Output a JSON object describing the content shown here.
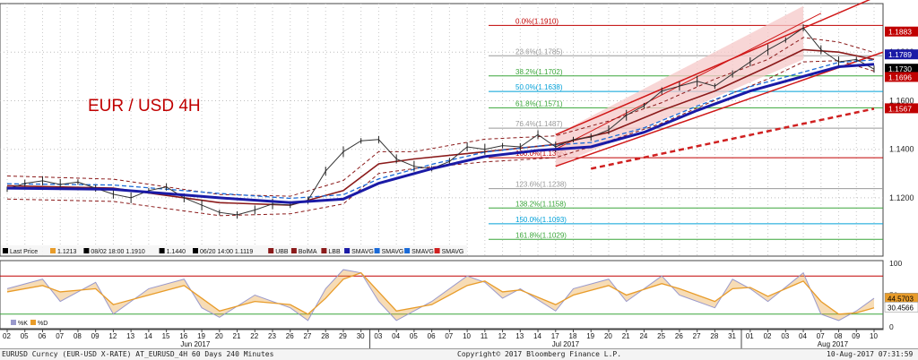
{
  "chart_data": {
    "type": "line",
    "title": "EUR / USD 4H",
    "instrument": "EURUSD Curncy",
    "price_axis": {
      "ticks": [
        "1.1200",
        "1.1400",
        "1.1600",
        "1.1800"
      ],
      "ylim": [
        1.096,
        1.2
      ],
      "tick_values": [
        1.12,
        1.14,
        1.16,
        1.18
      ]
    },
    "price_tags": [
      {
        "label": "1.1883",
        "value": 1.1883,
        "bg": "#c00000",
        "fg": "#ffffff"
      },
      {
        "label": "1.1789",
        "value": 1.1789,
        "bg": "#1a1aa6",
        "fg": "#ffffff"
      },
      {
        "label": "1.1730",
        "value": 1.173,
        "bg": "#000000",
        "fg": "#ffffff"
      },
      {
        "label": "1.1696",
        "value": 1.1696,
        "bg": "#c00000",
        "fg": "#ffffff"
      },
      {
        "label": "1.1567",
        "value": 1.1567,
        "bg": "#c00000",
        "fg": "#ffffff"
      }
    ],
    "fibonacci": [
      {
        "label": "0.0%(1.1910)",
        "value": 1.191,
        "color": "#c00000"
      },
      {
        "label": "23.6%(1.1785)",
        "value": 1.1785,
        "color": "#999999"
      },
      {
        "label": "38.2%(1.1702)",
        "value": 1.1702,
        "color": "#3aa63a"
      },
      {
        "label": "50.0%(1.1638)",
        "value": 1.1638,
        "color": "#00a0d8"
      },
      {
        "label": "61.8%(1.1571)",
        "value": 1.1571,
        "color": "#3aa63a"
      },
      {
        "label": "76.4%(1.1487)",
        "value": 1.1487,
        "color": "#999999"
      },
      {
        "label": "100.0%(1.1365)",
        "value": 1.1365,
        "color": "#c00000"
      },
      {
        "label": "123.6%(1.1238)",
        "value": 1.1238,
        "color": "#999999"
      },
      {
        "label": "138.2%(1.1158)",
        "value": 1.1158,
        "color": "#3aa63a"
      },
      {
        "label": "150.0%(1.1093)",
        "value": 1.1093,
        "color": "#00a0d8"
      },
      {
        "label": "161.8%(1.1029)",
        "value": 1.1029,
        "color": "#3aa63a"
      }
    ],
    "legend": [
      {
        "label": "Last Price",
        "color": "#000000"
      },
      {
        "label": "1.1213",
        "color": "#e89c2a"
      },
      {
        "label": "08/02 18:00 1.1910",
        "color": "#000000"
      },
      {
        "label": "1.1440",
        "color": "#000000"
      },
      {
        "label": "06/20 14:00 1.1119",
        "color": "#000000"
      },
      {
        "label": "UBB",
        "color": "#8b1a1a"
      },
      {
        "label": "BolMA",
        "color": "#8b1a1a"
      },
      {
        "label": "LBB",
        "color": "#8b1a1a"
      },
      {
        "label": "SMAVG",
        "color": "#1a1aa6"
      },
      {
        "label": "SMAVG",
        "color": "#1a6ad8"
      },
      {
        "label": "SMAVG",
        "color": "#1a6ad8"
      },
      {
        "label": "SMAVG",
        "color": "#d02020"
      }
    ],
    "stoch_axis": {
      "ticks": [
        "100",
        "50",
        "0"
      ],
      "tick_values": [
        100,
        50,
        0
      ],
      "ylim": [
        0,
        100
      ]
    },
    "stoch_tags": [
      {
        "label": "44.5703",
        "value": 44.57,
        "bg": "#e89c2a",
        "fg": "#000000"
      },
      {
        "label": "30.4566",
        "value": 30.46,
        "bg": "#ffffff",
        "fg": "#000000"
      }
    ],
    "stoch_legend": [
      {
        "label": "%K",
        "color": "#9999cc"
      },
      {
        "label": "%D",
        "color": "#e89c2a"
      }
    ],
    "x_days": [
      "02",
      "05",
      "06",
      "07",
      "08",
      "09",
      "12",
      "13",
      "14",
      "15",
      "16",
      "19",
      "20",
      "21",
      "22",
      "23",
      "26",
      "27",
      "28",
      "29",
      "30",
      "03",
      "04",
      "05",
      "06",
      "07",
      "10",
      "11",
      "12",
      "13",
      "14",
      "17",
      "18",
      "19",
      "20",
      "21",
      "24",
      "25",
      "26",
      "27",
      "28",
      "31",
      "01",
      "02",
      "03",
      "04",
      "07",
      "08",
      "09",
      "10"
    ],
    "x_months": [
      {
        "label": "Jun 2017",
        "day_index": 10
      },
      {
        "label": "Jul 2017",
        "day_index": 31
      },
      {
        "label": "Aug 2017",
        "day_index": 46
      }
    ],
    "price_path": [
      [
        0,
        1.1235
      ],
      [
        1,
        1.126
      ],
      [
        2,
        1.127
      ],
      [
        3,
        1.1255
      ],
      [
        4,
        1.1265
      ],
      [
        5,
        1.124
      ],
      [
        6,
        1.1215
      ],
      [
        7,
        1.12
      ],
      [
        8,
        1.123
      ],
      [
        9,
        1.1245
      ],
      [
        10,
        1.12
      ],
      [
        11,
        1.117
      ],
      [
        12,
        1.114
      ],
      [
        13,
        1.113
      ],
      [
        14,
        1.115
      ],
      [
        15,
        1.1175
      ],
      [
        16,
        1.117
      ],
      [
        17,
        1.119
      ],
      [
        18,
        1.131
      ],
      [
        19,
        1.139
      ],
      [
        20,
        1.1435
      ],
      [
        21,
        1.144
      ],
      [
        22,
        1.136
      ],
      [
        23,
        1.133
      ],
      [
        24,
        1.132
      ],
      [
        25,
        1.135
      ],
      [
        26,
        1.141
      ],
      [
        27,
        1.14
      ],
      [
        28,
        1.1415
      ],
      [
        29,
        1.141
      ],
      [
        30,
        1.146
      ],
      [
        31,
        1.141
      ],
      [
        32,
        1.144
      ],
      [
        33,
        1.145
      ],
      [
        34,
        1.148
      ],
      [
        35,
        1.154
      ],
      [
        36,
        1.158
      ],
      [
        37,
        1.164
      ],
      [
        38,
        1.166
      ],
      [
        39,
        1.168
      ],
      [
        40,
        1.166
      ],
      [
        41,
        1.171
      ],
      [
        42,
        1.176
      ],
      [
        43,
        1.181
      ],
      [
        44,
        1.185
      ],
      [
        45,
        1.19
      ],
      [
        46,
        1.181
      ],
      [
        47,
        1.176
      ],
      [
        48,
        1.177
      ],
      [
        49,
        1.173
      ]
    ],
    "sma_blue_path": [
      [
        0,
        1.124
      ],
      [
        6,
        1.1235
      ],
      [
        12,
        1.12
      ],
      [
        16,
        1.118
      ],
      [
        19,
        1.1195
      ],
      [
        21,
        1.126
      ],
      [
        24,
        1.132
      ],
      [
        27,
        1.137
      ],
      [
        30,
        1.1395
      ],
      [
        33,
        1.141
      ],
      [
        36,
        1.147
      ],
      [
        39,
        1.156
      ],
      [
        42,
        1.164
      ],
      [
        45,
        1.17
      ],
      [
        47,
        1.174
      ],
      [
        49,
        1.175
      ]
    ],
    "bolma_path": [
      [
        0,
        1.125
      ],
      [
        6,
        1.124
      ],
      [
        12,
        1.118
      ],
      [
        16,
        1.117
      ],
      [
        19,
        1.123
      ],
      [
        21,
        1.134
      ],
      [
        23,
        1.136
      ],
      [
        27,
        1.139
      ],
      [
        31,
        1.142
      ],
      [
        34,
        1.147
      ],
      [
        37,
        1.156
      ],
      [
        40,
        1.164
      ],
      [
        43,
        1.174
      ],
      [
        45,
        1.181
      ],
      [
        47,
        1.18
      ],
      [
        49,
        1.177
      ]
    ],
    "stoch_k": [
      [
        0,
        60
      ],
      [
        2,
        75
      ],
      [
        3,
        40
      ],
      [
        5,
        70
      ],
      [
        6,
        20
      ],
      [
        8,
        60
      ],
      [
        10,
        75
      ],
      [
        11,
        30
      ],
      [
        12,
        15
      ],
      [
        14,
        50
      ],
      [
        16,
        30
      ],
      [
        17,
        10
      ],
      [
        18,
        60
      ],
      [
        19,
        90
      ],
      [
        20,
        85
      ],
      [
        21,
        40
      ],
      [
        22,
        10
      ],
      [
        24,
        40
      ],
      [
        26,
        80
      ],
      [
        27,
        70
      ],
      [
        28,
        45
      ],
      [
        29,
        60
      ],
      [
        31,
        25
      ],
      [
        32,
        60
      ],
      [
        34,
        75
      ],
      [
        35,
        40
      ],
      [
        37,
        80
      ],
      [
        38,
        50
      ],
      [
        40,
        30
      ],
      [
        41,
        75
      ],
      [
        42,
        60
      ],
      [
        43,
        40
      ],
      [
        45,
        85
      ],
      [
        46,
        20
      ],
      [
        47,
        10
      ],
      [
        48,
        25
      ],
      [
        49,
        45
      ]
    ],
    "stoch_d": [
      [
        0,
        55
      ],
      [
        2,
        65
      ],
      [
        3,
        55
      ],
      [
        5,
        60
      ],
      [
        6,
        35
      ],
      [
        8,
        50
      ],
      [
        10,
        65
      ],
      [
        11,
        45
      ],
      [
        12,
        25
      ],
      [
        14,
        40
      ],
      [
        16,
        35
      ],
      [
        17,
        20
      ],
      [
        18,
        45
      ],
      [
        19,
        75
      ],
      [
        20,
        85
      ],
      [
        21,
        55
      ],
      [
        22,
        25
      ],
      [
        24,
        35
      ],
      [
        26,
        65
      ],
      [
        27,
        72
      ],
      [
        28,
        55
      ],
      [
        29,
        58
      ],
      [
        31,
        35
      ],
      [
        32,
        50
      ],
      [
        34,
        65
      ],
      [
        35,
        50
      ],
      [
        37,
        68
      ],
      [
        38,
        60
      ],
      [
        40,
        40
      ],
      [
        41,
        60
      ],
      [
        42,
        62
      ],
      [
        43,
        48
      ],
      [
        45,
        72
      ],
      [
        46,
        40
      ],
      [
        47,
        20
      ],
      [
        48,
        22
      ],
      [
        49,
        30
      ]
    ]
  },
  "footer": {
    "left": "EURUSD Curncy (EUR-USD X-RATE) AT_EURUSD_4H 60 Days 240 Minutes",
    "center": "Copyright© 2017 Bloomberg Finance L.P.",
    "right": "10-Aug-2017 07:31:59"
  },
  "colors": {
    "channel_fill": "#f6c8c8",
    "channel_line": "#d01818",
    "sma": "#1a1aa6",
    "bollinger": "#8b1a1a",
    "dashed_sma": "#1a6ad8",
    "red_trend": "#d02020",
    "stoch": "#e89c2a"
  }
}
